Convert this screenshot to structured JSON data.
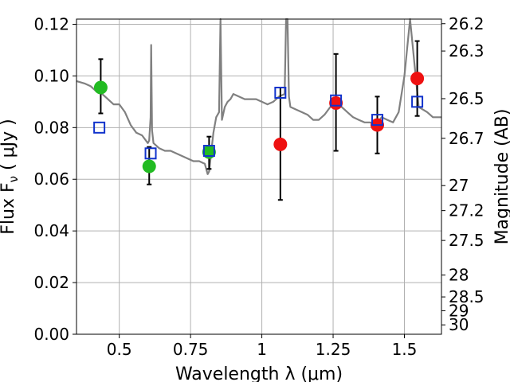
{
  "chart_data": {
    "type": "scatter",
    "xlabel": "Wavelength  λ (μm)",
    "ylabel": "Flux  F",
    "ylabel_sub": "ν",
    "ylabel_unit": " ( μJy )",
    "y2label": "Magnitude (AB)",
    "xlim": [
      0.35,
      1.63
    ],
    "ylim": [
      0.0,
      0.122
    ],
    "grid": true,
    "x_ticks": [
      {
        "value": 0.5,
        "label": "0.5"
      },
      {
        "value": 0.75,
        "label": "0.75"
      },
      {
        "value": 1.0,
        "label": "1"
      },
      {
        "value": 1.25,
        "label": "1.25"
      },
      {
        "value": 1.5,
        "label": "1.5"
      }
    ],
    "y_ticks": [
      {
        "value": 0.0,
        "label": "0.00"
      },
      {
        "value": 0.02,
        "label": "0.02"
      },
      {
        "value": 0.04,
        "label": "0.04"
      },
      {
        "value": 0.06,
        "label": "0.06"
      },
      {
        "value": 0.08,
        "label": "0.08"
      },
      {
        "value": 0.1,
        "label": "0.10"
      },
      {
        "value": 0.12,
        "label": "0.12"
      }
    ],
    "y2_ticks": [
      {
        "value": 26.2,
        "label": "26.2"
      },
      {
        "value": 26.3,
        "label": "26.3"
      },
      {
        "value": 26.5,
        "label": "26.5"
      },
      {
        "value": 26.7,
        "label": "26.7"
      },
      {
        "value": 27.0,
        "label": "27"
      },
      {
        "value": 27.2,
        "label": "27.2"
      },
      {
        "value": 27.5,
        "label": "27.5"
      },
      {
        "value": 28.0,
        "label": "28"
      },
      {
        "value": 28.5,
        "label": "28.5"
      },
      {
        "value": 29.0,
        "label": "29"
      },
      {
        "value": 30.0,
        "label": "30"
      }
    ],
    "series": [
      {
        "kind": "line",
        "color": "#808080",
        "x": [
          0.35,
          0.38,
          0.4,
          0.42,
          0.44,
          0.46,
          0.48,
          0.5,
          0.52,
          0.54,
          0.56,
          0.58,
          0.6,
          0.605,
          0.61,
          0.612,
          0.615,
          0.62,
          0.64,
          0.66,
          0.68,
          0.7,
          0.72,
          0.74,
          0.76,
          0.78,
          0.8,
          0.805,
          0.81,
          0.815,
          0.82,
          0.825,
          0.83,
          0.84,
          0.85,
          0.855,
          0.86,
          0.87,
          0.88,
          0.89,
          0.9,
          0.92,
          0.94,
          0.96,
          0.98,
          1.0,
          1.02,
          1.04,
          1.06,
          1.08,
          1.085,
          1.09,
          1.095,
          1.1,
          1.12,
          1.14,
          1.16,
          1.18,
          1.2,
          1.22,
          1.24,
          1.26,
          1.28,
          1.3,
          1.32,
          1.34,
          1.36,
          1.38,
          1.4,
          1.42,
          1.44,
          1.46,
          1.48,
          1.5,
          1.52,
          1.55,
          1.58,
          1.6,
          1.63
        ],
        "y": [
          0.098,
          0.097,
          0.096,
          0.094,
          0.093,
          0.091,
          0.089,
          0.089,
          0.086,
          0.081,
          0.078,
          0.077,
          0.074,
          0.075,
          0.084,
          0.112,
          0.079,
          0.074,
          0.072,
          0.071,
          0.071,
          0.07,
          0.069,
          0.068,
          0.067,
          0.067,
          0.066,
          0.064,
          0.062,
          0.063,
          0.068,
          0.073,
          0.078,
          0.084,
          0.086,
          0.122,
          0.083,
          0.088,
          0.09,
          0.091,
          0.093,
          0.092,
          0.091,
          0.091,
          0.091,
          0.09,
          0.089,
          0.09,
          0.092,
          0.093,
          0.122,
          0.122,
          0.092,
          0.088,
          0.087,
          0.086,
          0.085,
          0.083,
          0.083,
          0.085,
          0.088,
          0.089,
          0.088,
          0.086,
          0.084,
          0.083,
          0.082,
          0.082,
          0.081,
          0.084,
          0.083,
          0.082,
          0.086,
          0.1,
          0.122,
          0.088,
          0.086,
          0.084,
          0.084
        ]
      },
      {
        "kind": "points",
        "marker": "circle",
        "color": "#22bb22",
        "x": [
          0.435,
          0.605,
          0.815
        ],
        "y": [
          0.0955,
          0.065,
          0.0705
        ],
        "err_low": [
          0.0855,
          0.058,
          0.064
        ],
        "err_high": [
          0.1065,
          0.0725,
          0.0765
        ]
      },
      {
        "kind": "points",
        "marker": "circle",
        "color": "#ee1111",
        "x": [
          1.065,
          1.26,
          1.405,
          1.545
        ],
        "y": [
          0.0735,
          0.0895,
          0.081,
          0.099
        ],
        "err_low": [
          0.052,
          0.071,
          0.07,
          0.0845
        ],
        "err_high": [
          0.0955,
          0.1085,
          0.092,
          0.1135
        ]
      },
      {
        "kind": "points",
        "marker": "open-square",
        "color": "#1133cc",
        "x": [
          0.43,
          0.61,
          0.815,
          1.065,
          1.26,
          1.405,
          1.545
        ],
        "y": [
          0.08,
          0.07,
          0.071,
          0.0935,
          0.0905,
          0.083,
          0.09
        ]
      }
    ]
  }
}
